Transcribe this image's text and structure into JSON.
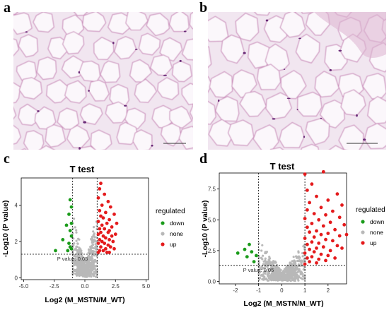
{
  "panels": {
    "a": {
      "letter": "a"
    },
    "b": {
      "letter": "b"
    },
    "c": {
      "letter": "c"
    },
    "d": {
      "letter": "d"
    }
  },
  "colors": {
    "tissue_bg": "#efe3ee",
    "cell_membrane": "#c98ab9",
    "nucleus": "#6a2b78",
    "down": "#1a9b1a",
    "none": "#b8b8b8",
    "up": "#e41a1c"
  },
  "chart_data": [
    {
      "id": "c",
      "type": "scatter",
      "title": "T test",
      "xlabel": "Log2 (M_MSTN/M_WT)",
      "ylabel": "-Log10 (P value)",
      "xlim": [
        -5.2,
        5.2
      ],
      "ylim": [
        -0.1,
        5.5
      ],
      "x_ticks": [
        -5.0,
        -2.5,
        0.0,
        2.5,
        5.0
      ],
      "x_tick_labels": [
        "-5.0",
        "-2.5",
        "0.0",
        "2.5",
        "5.0"
      ],
      "y_ticks": [
        0,
        2,
        4
      ],
      "y_tick_labels": [
        "0",
        "2",
        "4"
      ],
      "threshold_x": [
        -1,
        1
      ],
      "threshold_y": 1.3,
      "annotation": "P value: 0.05",
      "legend": {
        "title": "regulated",
        "entries": [
          "down",
          "none",
          "up"
        ],
        "placement": "right"
      },
      "series": [
        {
          "name": "down",
          "points": [
            [
              -1.2,
              4.3
            ],
            [
              -1.1,
              3.9
            ],
            [
              -1.3,
              3.5
            ],
            [
              -1.1,
              3.0
            ],
            [
              -1.5,
              2.9
            ],
            [
              -1.2,
              2.6
            ],
            [
              -1.1,
              2.3
            ],
            [
              -1.8,
              2.1
            ],
            [
              -1.3,
              1.9
            ],
            [
              -1.2,
              1.7
            ],
            [
              -1.1,
              1.6
            ],
            [
              -2.4,
              1.5
            ],
            [
              -1.4,
              1.5
            ]
          ]
        },
        {
          "name": "up",
          "points": [
            [
              1.3,
              5.2
            ],
            [
              1.2,
              4.9
            ],
            [
              1.6,
              4.6
            ],
            [
              1.1,
              4.4
            ],
            [
              1.9,
              4.2
            ],
            [
              1.4,
              4.0
            ],
            [
              2.1,
              3.9
            ],
            [
              1.2,
              3.7
            ],
            [
              1.7,
              3.6
            ],
            [
              2.4,
              3.5
            ],
            [
              1.3,
              3.4
            ],
            [
              1.5,
              3.3
            ],
            [
              2.0,
              3.2
            ],
            [
              1.1,
              3.1
            ],
            [
              1.8,
              3.0
            ],
            [
              2.6,
              3.0
            ],
            [
              1.4,
              2.9
            ],
            [
              2.2,
              2.8
            ],
            [
              1.2,
              2.7
            ],
            [
              1.6,
              2.7
            ],
            [
              2.0,
              2.6
            ],
            [
              1.3,
              2.5
            ],
            [
              1.9,
              2.5
            ],
            [
              2.5,
              2.4
            ],
            [
              1.1,
              2.4
            ],
            [
              1.5,
              2.3
            ],
            [
              2.2,
              2.3
            ],
            [
              1.7,
              2.2
            ],
            [
              1.2,
              2.1
            ],
            [
              2.0,
              2.1
            ],
            [
              1.4,
              2.0
            ],
            [
              2.3,
              2.0
            ],
            [
              1.6,
              1.9
            ],
            [
              1.1,
              1.9
            ],
            [
              1.9,
              1.8
            ],
            [
              2.1,
              1.7
            ],
            [
              1.3,
              1.7
            ],
            [
              1.7,
              1.6
            ],
            [
              2.4,
              1.6
            ],
            [
              1.2,
              1.5
            ],
            [
              1.5,
              1.5
            ],
            [
              2.0,
              1.4
            ],
            [
              1.8,
              1.4
            ],
            [
              1.1,
              1.4
            ]
          ]
        }
      ]
    },
    {
      "id": "d",
      "type": "scatter",
      "title": "T test",
      "xlabel": "Log2 (M_MSTN/M_WT)",
      "ylabel": "-Log10 (P value)",
      "xlim": [
        -2.7,
        2.8
      ],
      "ylim": [
        -0.2,
        8.8
      ],
      "x_ticks": [
        -2,
        -1,
        0,
        1,
        2
      ],
      "x_tick_labels": [
        "-2",
        "-1",
        "0",
        "1",
        "2"
      ],
      "y_ticks": [
        0.0,
        2.5,
        5.0,
        7.5
      ],
      "y_tick_labels": [
        "0.0",
        "2.5",
        "5.0",
        "7.5"
      ],
      "threshold_x": [
        -1,
        1
      ],
      "threshold_y": 1.3,
      "annotation": "P value: 0.05",
      "legend": {
        "title": "regulated",
        "entries": [
          "down",
          "none",
          "up"
        ],
        "placement": "right"
      },
      "series": [
        {
          "name": "down",
          "points": [
            [
              -1.9,
              2.3
            ],
            [
              -1.6,
              2.6
            ],
            [
              -1.5,
              2.0
            ],
            [
              -1.4,
              3.0
            ],
            [
              -1.3,
              2.4
            ],
            [
              -1.2,
              1.6
            ],
            [
              -1.1,
              2.1
            ]
          ]
        },
        {
          "name": "up",
          "points": [
            [
              1.0,
              8.7
            ],
            [
              1.8,
              8.9
            ],
            [
              1.3,
              7.9
            ],
            [
              1.1,
              7.4
            ],
            [
              2.4,
              7.1
            ],
            [
              1.5,
              6.9
            ],
            [
              2.0,
              6.6
            ],
            [
              1.2,
              6.4
            ],
            [
              2.6,
              6.2
            ],
            [
              1.7,
              6.0
            ],
            [
              1.1,
              5.8
            ],
            [
              2.2,
              5.7
            ],
            [
              1.4,
              5.5
            ],
            [
              1.9,
              5.4
            ],
            [
              2.5,
              5.2
            ],
            [
              1.0,
              5.1
            ],
            [
              1.6,
              5.0
            ],
            [
              2.1,
              4.8
            ],
            [
              1.3,
              4.7
            ],
            [
              2.7,
              4.6
            ],
            [
              1.8,
              4.5
            ],
            [
              1.1,
              4.4
            ],
            [
              2.3,
              4.2
            ],
            [
              1.5,
              4.1
            ],
            [
              1.2,
              4.0
            ],
            [
              2.0,
              3.9
            ],
            [
              1.7,
              3.8
            ],
            [
              2.5,
              3.7
            ],
            [
              1.4,
              3.6
            ],
            [
              1.0,
              3.5
            ],
            [
              1.9,
              3.4
            ],
            [
              2.2,
              3.3
            ],
            [
              1.3,
              3.2
            ],
            [
              1.6,
              3.1
            ],
            [
              1.1,
              3.0
            ],
            [
              2.4,
              2.9
            ],
            [
              1.8,
              2.8
            ],
            [
              1.5,
              2.7
            ],
            [
              1.2,
              2.6
            ],
            [
              2.1,
              2.5
            ],
            [
              1.4,
              2.4
            ],
            [
              1.0,
              2.3
            ],
            [
              1.7,
              2.2
            ],
            [
              2.0,
              2.1
            ],
            [
              1.3,
              2.0
            ],
            [
              1.1,
              1.9
            ],
            [
              1.6,
              1.8
            ],
            [
              1.9,
              1.7
            ],
            [
              1.2,
              1.6
            ],
            [
              1.5,
              1.5
            ],
            [
              1.0,
              1.4
            ],
            [
              2.3,
              1.9
            ],
            [
              2.6,
              2.7
            ],
            [
              2.8,
              3.8
            ]
          ]
        }
      ]
    }
  ]
}
